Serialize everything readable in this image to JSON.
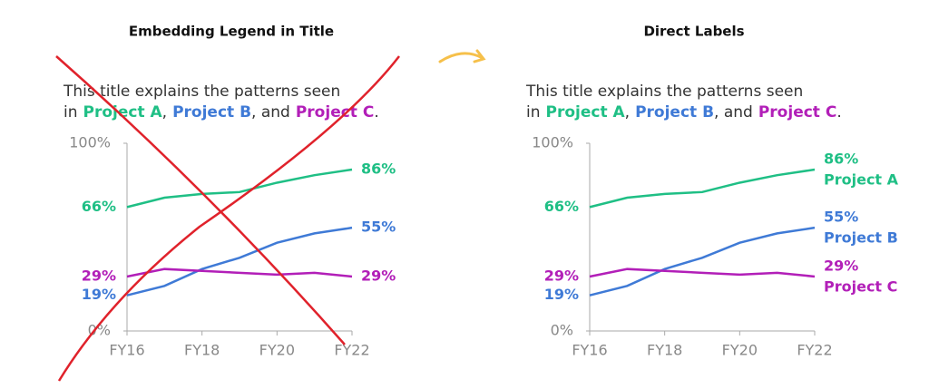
{
  "chart_data": [
    {
      "type": "line",
      "title": "Embedding Legend in Title",
      "subtitle": [
        "This title explains the patterns seen",
        "in",
        ",",
        ", and",
        "."
      ],
      "categories": [
        "FY16",
        null,
        "FY18",
        null,
        "FY20",
        null,
        "FY22"
      ],
      "ylim": [
        0,
        100
      ],
      "yticks": [
        {
          "value": 0,
          "label": "0%"
        },
        {
          "value": 100,
          "label": "100%"
        }
      ],
      "direct_labels": false,
      "crossed_out": true,
      "series": [
        {
          "name": "Project A",
          "color": "#1fbf85",
          "values": [
            66,
            71,
            73,
            74,
            79,
            83,
            86
          ],
          "value_labels": [
            "66%",
            null,
            null,
            null,
            null,
            null,
            "86%"
          ]
        },
        {
          "name": "Project B",
          "color": "#3f7ad6",
          "values": [
            19,
            24,
            33,
            39,
            47,
            52,
            55
          ],
          "value_labels": [
            "19%",
            null,
            null,
            null,
            null,
            null,
            "55%"
          ]
        },
        {
          "name": "Project C",
          "color": "#b21fb8",
          "values": [
            29,
            33,
            32,
            31,
            30,
            31,
            29
          ],
          "value_labels": [
            "29%",
            null,
            null,
            null,
            null,
            null,
            "29%"
          ]
        }
      ]
    },
    {
      "type": "line",
      "title": "Direct Labels",
      "subtitle": [
        "This title explains the patterns seen",
        "in",
        ",",
        ", and",
        "."
      ],
      "categories": [
        "FY16",
        null,
        "FY18",
        null,
        "FY20",
        null,
        "FY22"
      ],
      "ylim": [
        0,
        100
      ],
      "yticks": [
        {
          "value": 0,
          "label": "0%"
        },
        {
          "value": 100,
          "label": "100%"
        }
      ],
      "direct_labels": true,
      "crossed_out": false,
      "series": [
        {
          "name": "Project A",
          "color": "#1fbf85",
          "values": [
            66,
            71,
            73,
            74,
            79,
            83,
            86
          ],
          "value_labels": [
            "66%",
            null,
            null,
            null,
            null,
            null,
            "86%"
          ]
        },
        {
          "name": "Project B",
          "color": "#3f7ad6",
          "values": [
            19,
            24,
            33,
            39,
            47,
            52,
            55
          ],
          "value_labels": [
            "19%",
            null,
            null,
            null,
            null,
            null,
            "55%"
          ]
        },
        {
          "name": "Project C",
          "color": "#b21fb8",
          "values": [
            29,
            33,
            32,
            31,
            30,
            31,
            29
          ],
          "value_labels": [
            "29%",
            null,
            null,
            null,
            null,
            null,
            "29%"
          ]
        }
      ]
    }
  ]
}
